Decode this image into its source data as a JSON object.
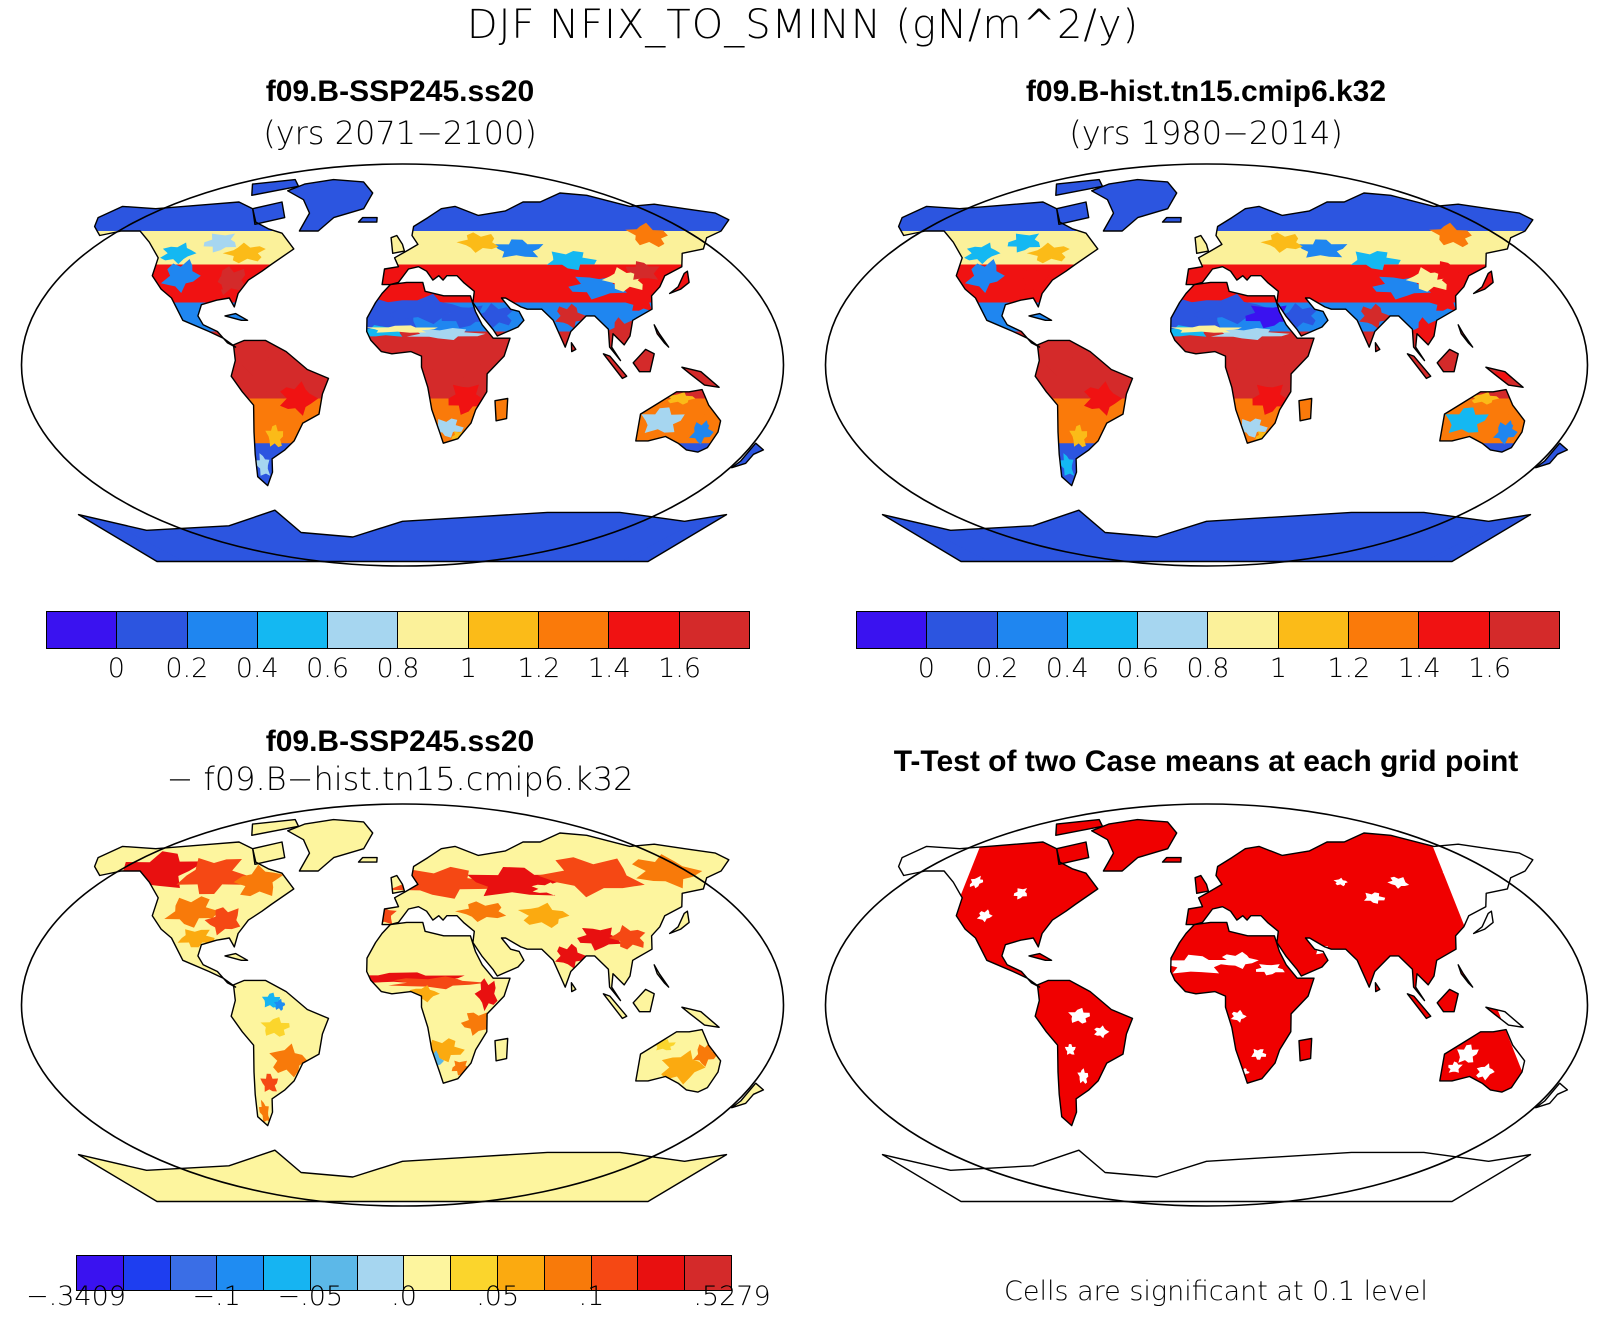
{
  "title": "DJF NFIX_TO_SMINN (gN/m^2/y)",
  "colors": {
    "seq": [
      "#3a12f0",
      "#2c55e0",
      "#1f86f0",
      "#14b8f2",
      "#a6d6f0",
      "#fbf19a",
      "#fbbb18",
      "#fa7a0a",
      "#f01212",
      "#d42a2a"
    ],
    "diff": [
      "#3a12f0",
      "#1e3ef0",
      "#3a6ee6",
      "#1f8cf2",
      "#16b4f2",
      "#5cb8e8",
      "#a6d6f0",
      "#fdf59e",
      "#fbd52c",
      "#fbaa10",
      "#f87a0a",
      "#f54814",
      "#e81010",
      "#d42a2a"
    ],
    "sig": "#f00000",
    "ocean": "#ffffff",
    "outline": "#000000"
  },
  "panels": [
    {
      "title": "f09.B-SSP245.ss20",
      "subtitle": "(yrs 2071−2100)",
      "colorbar": "seq",
      "ticks": [
        "0",
        "0.2",
        "0.4",
        "0.6",
        "0.8",
        "1",
        "1.2",
        "1.4",
        "1.6"
      ],
      "antarctica_level": 1
    },
    {
      "title": "f09.B-hist.tn15.cmip6.k32",
      "subtitle": "(yrs 1980−2014)",
      "colorbar": "seq",
      "ticks": [
        "0",
        "0.2",
        "0.4",
        "0.6",
        "0.8",
        "1",
        "1.2",
        "1.4",
        "1.6"
      ],
      "antarctica_level": 1
    },
    {
      "title": "f09.B-SSP245.ss20",
      "subtitle": "− f09.B−hist.tn15.cmip6.k32",
      "colorbar": "diff",
      "ticks": [
        "−.3409",
        "−.1",
        "−.05",
        ".0",
        ".05",
        ".1",
        ".5279"
      ]
    },
    {
      "title": "T-Test of two Case means at each grid point",
      "note": "Cells are significant at 0.1 level"
    }
  ]
}
